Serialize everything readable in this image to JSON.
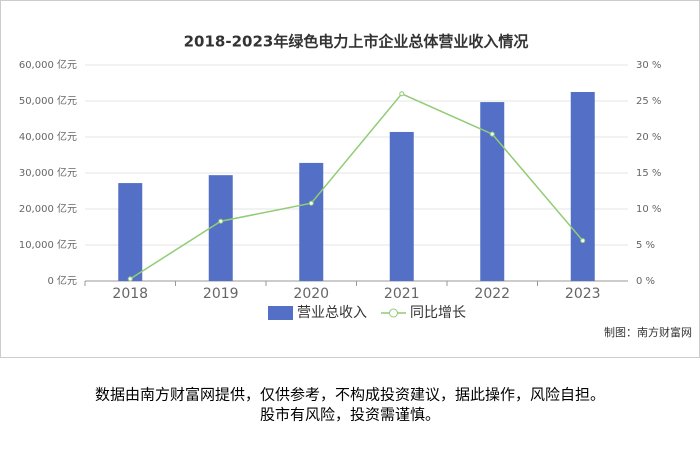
{
  "chart_data": {
    "type": "bar",
    "title": "2018-2023年绿色电力上市企业总体营业收入情况",
    "categories": [
      "2018",
      "2019",
      "2020",
      "2021",
      "2022",
      "2023"
    ],
    "series": [
      {
        "name": "营业总收入",
        "type": "bar",
        "color": "#5470c6",
        "values": [
          27200,
          29400,
          32800,
          41400,
          49700,
          52500
        ]
      },
      {
        "name": "同比增长",
        "type": "line",
        "axis": "y2",
        "color": "#91cc75",
        "values": [
          0.3,
          8.3,
          10.8,
          26,
          20.4,
          5.6
        ]
      }
    ],
    "ylim": [
      0,
      60000
    ],
    "yticks": [
      {
        "value": 0,
        "label": "0 亿元"
      },
      {
        "value": 10000,
        "label": "10,000 亿元"
      },
      {
        "value": 20000,
        "label": "20,000 亿元"
      },
      {
        "value": 30000,
        "label": "30,000 亿元"
      },
      {
        "value": 40000,
        "label": "40,000 亿元"
      },
      {
        "value": 50000,
        "label": "50,000 亿元"
      },
      {
        "value": 60000,
        "label": "60,000 亿元"
      }
    ],
    "y2lim": [
      0,
      30
    ],
    "y2ticks": [
      {
        "value": 0,
        "label": "0 %"
      },
      {
        "value": 5,
        "label": "5 %"
      },
      {
        "value": 10,
        "label": "10 %"
      },
      {
        "value": 15,
        "label": "15 %"
      },
      {
        "value": 20,
        "label": "20 %"
      },
      {
        "value": 25,
        "label": "25 %"
      },
      {
        "value": 30,
        "label": "30 %"
      }
    ],
    "grid": true,
    "legend": "bottom"
  },
  "credit": "制图：南方财富网",
  "disclaimer": [
    "数据由南方财富网提供，仅供参考，不构成投资建议，据此操作，风险自担。",
    "股市有风险，投资需谨慎。"
  ]
}
